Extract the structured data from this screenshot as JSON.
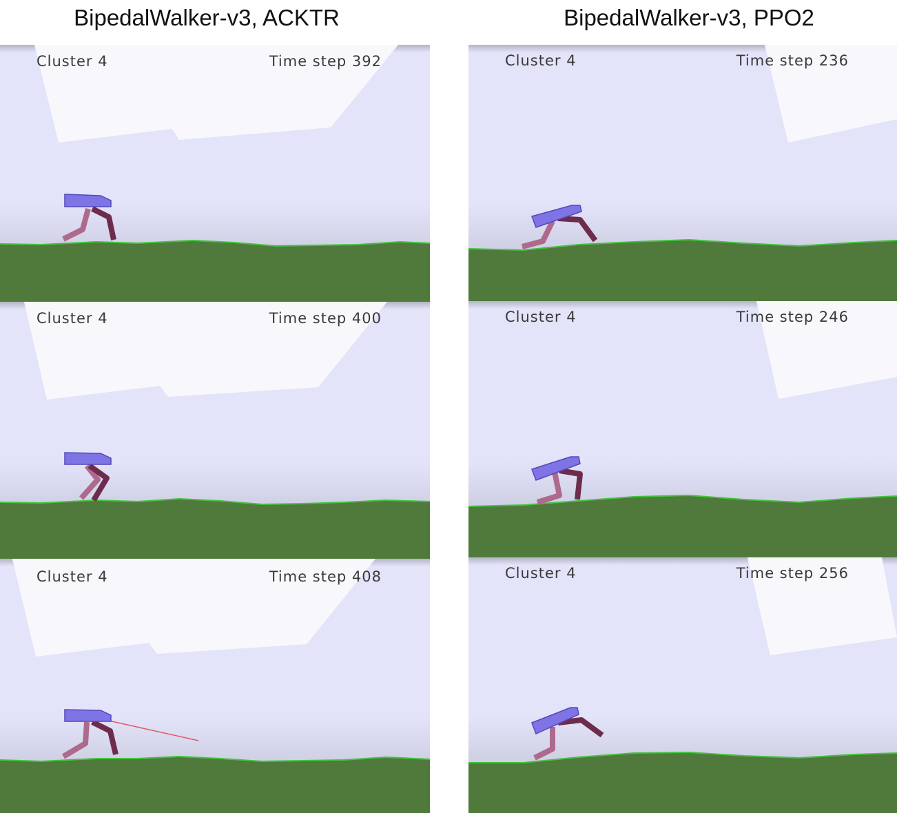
{
  "columns": [
    {
      "title": "BipedalWalker-v3, ACKTR",
      "frames": [
        {
          "cluster": "Cluster 4",
          "time_step": "Time step 392"
        },
        {
          "cluster": "Cluster 4",
          "time_step": "Time step 400"
        },
        {
          "cluster": "Cluster 4",
          "time_step": "Time step 408"
        }
      ]
    },
    {
      "title": "BipedalWalker-v3, PPO2",
      "frames": [
        {
          "cluster": "Cluster 4",
          "time_step": "Time step 236"
        },
        {
          "cluster": "Cluster 4",
          "time_step": "Time step 246"
        },
        {
          "cluster": "Cluster 4",
          "time_step": "Time step 256"
        }
      ]
    }
  ],
  "colors": {
    "sky": "#e3e3fa",
    "cloud": "#f8f8fc",
    "ground": "#4f7a3c",
    "ground_edge": "#44c23e",
    "hull": "#7f74e6",
    "hull_edge": "#5448b8",
    "leg_near": "#6e2c4c",
    "leg_far": "#ad6a8c",
    "lidar": "#e0585e"
  }
}
